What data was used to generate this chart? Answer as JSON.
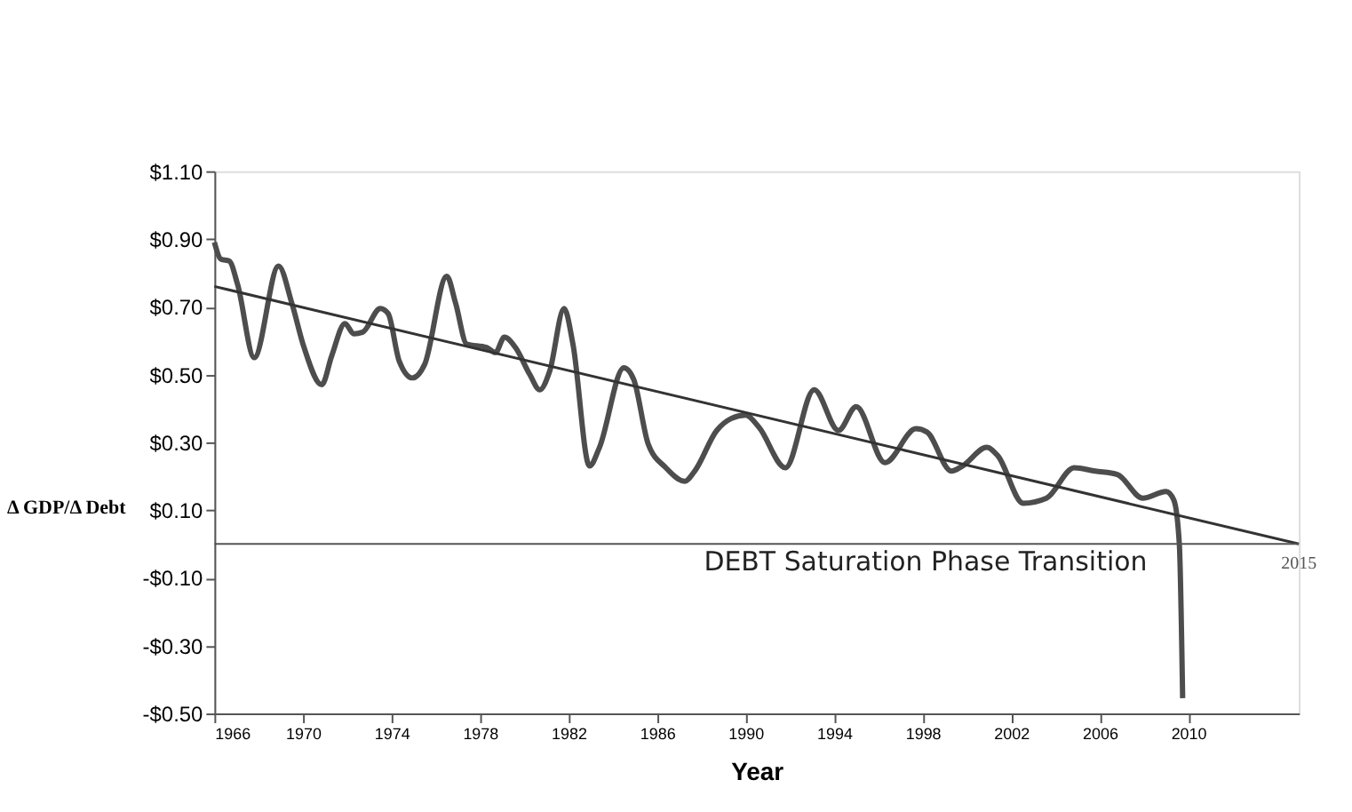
{
  "chart_data": {
    "type": "line",
    "xlabel": "Year",
    "ylabel": "Δ GDP/Δ Debt",
    "xlim": [
      1966,
      2015
    ],
    "xticks": [
      1966,
      1970,
      1974,
      1978,
      1982,
      1986,
      1990,
      1994,
      1998,
      2002,
      2006,
      2010
    ],
    "ylim": [
      -0.5,
      1.1
    ],
    "yticks": [
      {
        "value": 1.1,
        "label": "$1.10"
      },
      {
        "value": 0.9,
        "label": "$0.90"
      },
      {
        "value": 0.7,
        "label": "$0.70"
      },
      {
        "value": 0.5,
        "label": "$0.50"
      },
      {
        "value": 0.3,
        "label": "$0.30"
      },
      {
        "value": 0.1,
        "label": "$0.10"
      },
      {
        "value": -0.1,
        "label": "-$0.10"
      },
      {
        "value": -0.3,
        "label": "-$0.30"
      },
      {
        "value": -0.5,
        "label": "-$0.50"
      }
    ],
    "series": [
      {
        "color": "#4d4d4d",
        "x": [
          1966.0,
          1966.3,
          1966.67,
          1967.05,
          1967.8,
          1968.9,
          1969.5,
          1970.05,
          1970.85,
          1971.3,
          1971.9,
          1972.3,
          1972.7,
          1973.5,
          1973.85,
          1974.35,
          1974.95,
          1975.5,
          1976.5,
          1976.9,
          1977.4,
          1978.3,
          1978.7,
          1979.1,
          1979.6,
          1980.25,
          1980.7,
          1981.15,
          1981.8,
          1982.2,
          1982.95,
          1983.4,
          1984.5,
          1984.95,
          1985.6,
          1986.4,
          1987.25,
          1987.7,
          1988.7,
          1989.35,
          1990.0,
          1990.6,
          1991.8,
          1993.1,
          1994.2,
          1995.0,
          1996.3,
          1997.7,
          1998.2,
          1999.3,
          1999.8,
          2000.9,
          2001.4,
          2002.55,
          2003.6,
          2004.85,
          2005.8,
          2006.8,
          2007.95,
          2009.0,
          2009.35,
          2009.6,
          2009.75
        ],
        "values": [
          0.89,
          0.84,
          0.835,
          0.765,
          0.55,
          0.82,
          0.71,
          0.58,
          0.47,
          0.555,
          0.65,
          0.62,
          0.625,
          0.695,
          0.68,
          0.54,
          0.49,
          0.53,
          0.79,
          0.71,
          0.59,
          0.58,
          0.565,
          0.61,
          0.58,
          0.5,
          0.455,
          0.51,
          0.695,
          0.59,
          0.23,
          0.285,
          0.52,
          0.485,
          0.295,
          0.225,
          0.185,
          0.215,
          0.335,
          0.37,
          0.38,
          0.345,
          0.225,
          0.455,
          0.335,
          0.405,
          0.24,
          0.34,
          0.33,
          0.215,
          0.23,
          0.285,
          0.26,
          0.12,
          0.135,
          0.225,
          0.215,
          0.205,
          0.135,
          0.155,
          0.13,
          0.0,
          -0.455
        ]
      },
      {
        "type": "line",
        "color": "#333333",
        "x": [
          1966,
          2015
        ],
        "values": [
          0.76,
          0.0
        ]
      }
    ],
    "ref_lines": [
      {
        "axis": "y",
        "value": 0,
        "label": "DEBT Saturation Phase Transition",
        "color": "#555555"
      }
    ],
    "annotations": [
      {
        "text": "2015",
        "x": 2015,
        "y": 0
      }
    ],
    "grid": false
  }
}
